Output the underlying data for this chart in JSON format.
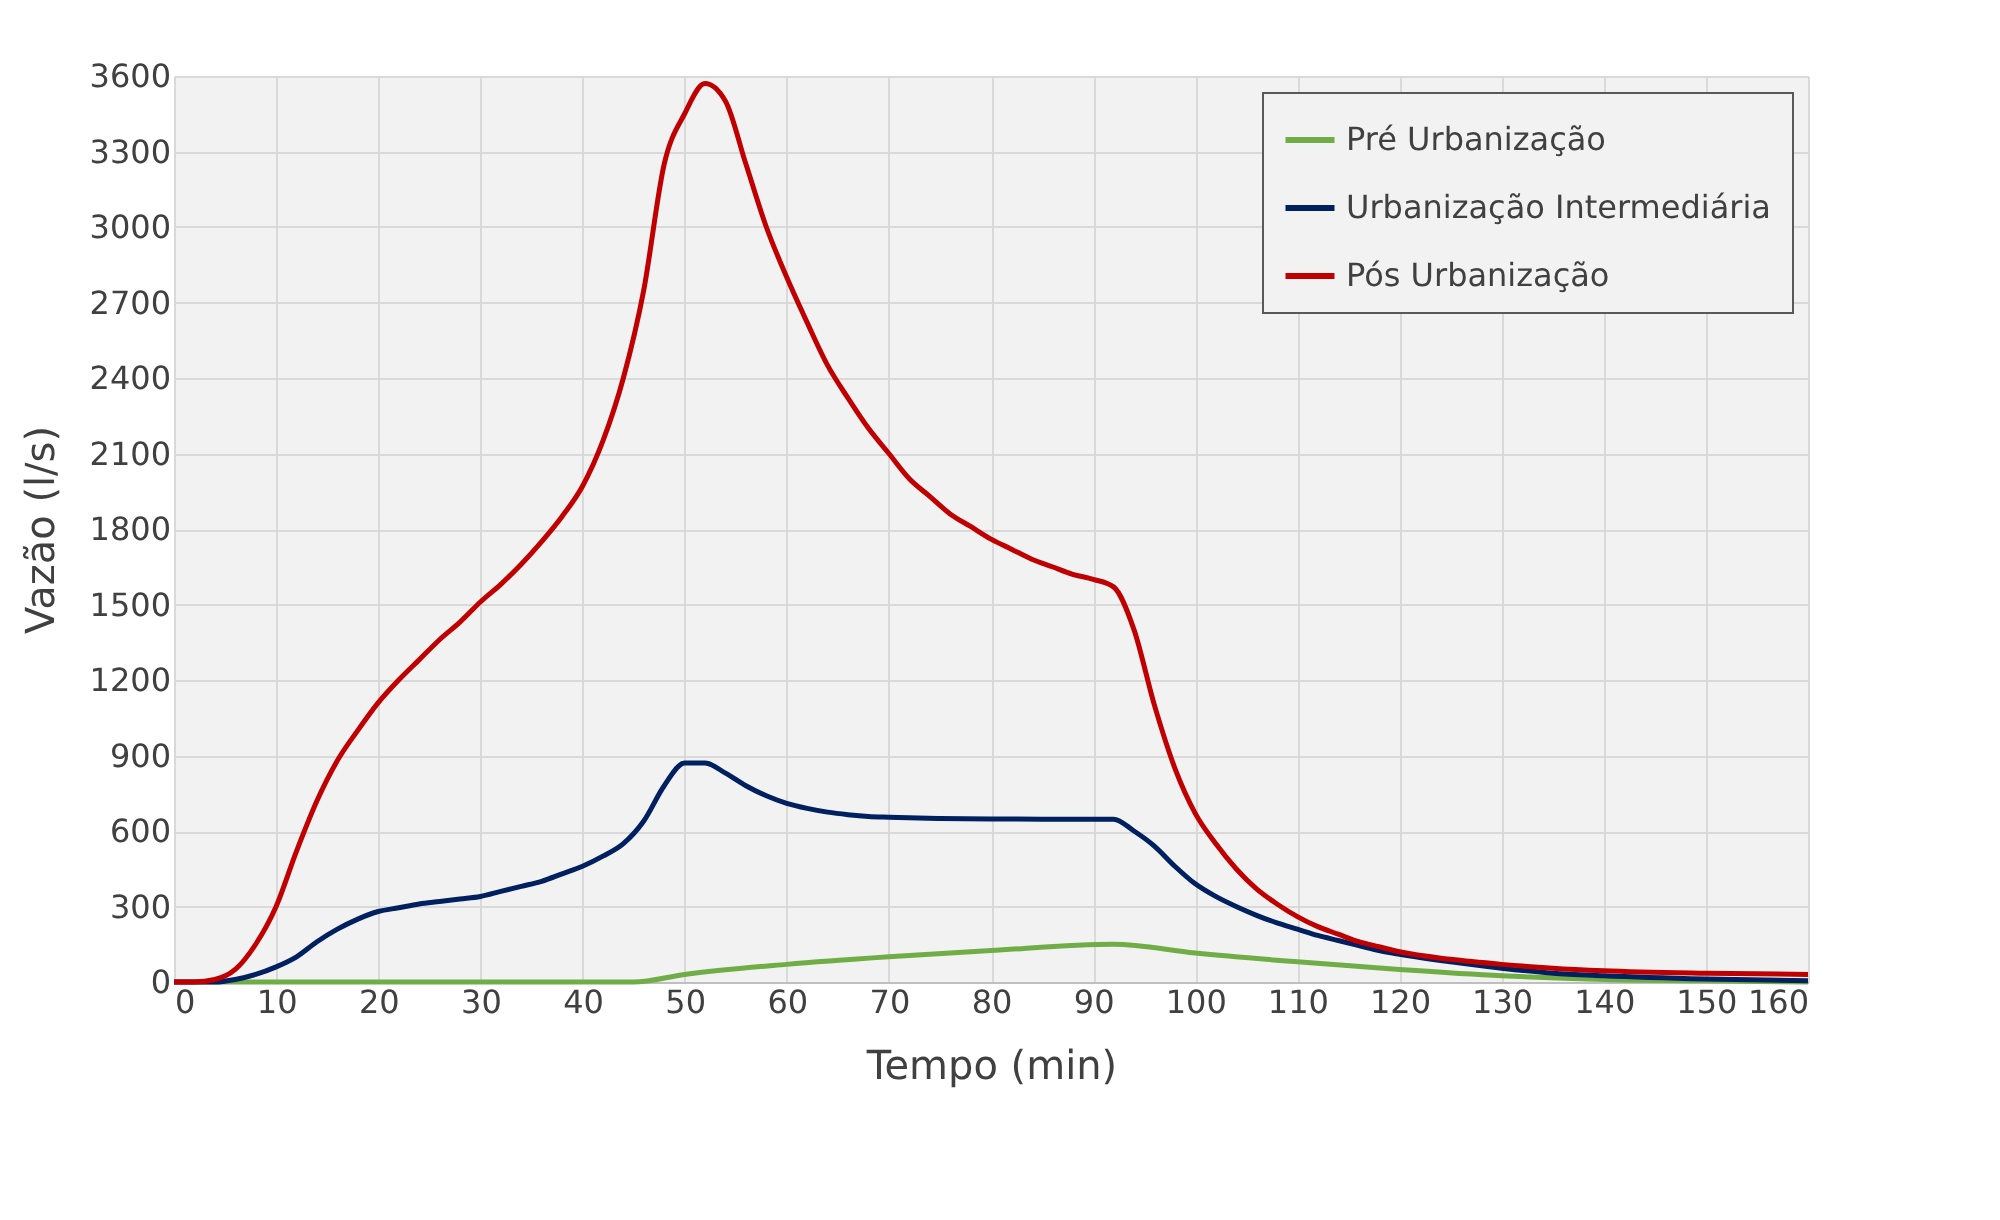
{
  "chart_data": {
    "type": "line",
    "xlabel": "Tempo (min)",
    "ylabel": "Vazão (l/s)",
    "xlim": [
      0,
      160
    ],
    "ylim": [
      0,
      3600
    ],
    "xticks": [
      0,
      10,
      20,
      30,
      40,
      50,
      60,
      70,
      80,
      90,
      100,
      110,
      120,
      130,
      140,
      150,
      160
    ],
    "yticks": [
      0,
      300,
      600,
      900,
      1200,
      1500,
      1800,
      2100,
      2400,
      2700,
      3000,
      3300,
      3600
    ],
    "grid": true,
    "legend": "top right",
    "marker": "none",
    "line_style": "solid",
    "series": [
      {
        "name": "Pré Urbanização",
        "color": "#70ad47",
        "x": [
          0,
          45,
          50,
          60,
          70,
          80,
          92,
          100,
          110,
          120,
          130,
          140,
          150,
          160
        ],
        "values": [
          0,
          0,
          30,
          70,
          100,
          125,
          150,
          115,
          80,
          50,
          25,
          10,
          5,
          0
        ]
      },
      {
        "name": "Urbanização Intermediária",
        "color": "#002060",
        "x": [
          0,
          4,
          6,
          8,
          10,
          12,
          14,
          16,
          18,
          20,
          22,
          24,
          26,
          28,
          30,
          32,
          34,
          36,
          38,
          40,
          42,
          44,
          46,
          48,
          50,
          52,
          54,
          56,
          58,
          60,
          62,
          64,
          66,
          68,
          70,
          75,
          80,
          85,
          92,
          94,
          96,
          98,
          100,
          102,
          104,
          106,
          108,
          110,
          112,
          114,
          116,
          118,
          120,
          125,
          130,
          135,
          140,
          150,
          160
        ],
        "values": [
          0,
          0,
          10,
          30,
          60,
          100,
          160,
          210,
          250,
          280,
          295,
          310,
          320,
          330,
          340,
          360,
          380,
          400,
          430,
          460,
          500,
          550,
          640,
          780,
          870,
          870,
          830,
          780,
          740,
          710,
          690,
          675,
          665,
          658,
          655,
          650,
          648,
          647,
          647,
          600,
          540,
          460,
          390,
          340,
          300,
          265,
          235,
          210,
          185,
          165,
          145,
          125,
          110,
          80,
          55,
          35,
          25,
          12,
          5
        ]
      },
      {
        "name": "Pós Urbanização",
        "color": "#c00000",
        "x": [
          0,
          2,
          4,
          6,
          8,
          10,
          12,
          14,
          16,
          18,
          20,
          22,
          24,
          26,
          28,
          30,
          32,
          34,
          36,
          38,
          40,
          42,
          44,
          46,
          48,
          50,
          52,
          54,
          56,
          58,
          60,
          62,
          64,
          66,
          68,
          70,
          72,
          74,
          76,
          78,
          80,
          82,
          84,
          86,
          88,
          90,
          92,
          94,
          96,
          98,
          100,
          102,
          104,
          106,
          108,
          110,
          112,
          114,
          116,
          118,
          120,
          125,
          130,
          135,
          140,
          150,
          160
        ],
        "values": [
          0,
          0,
          10,
          50,
          150,
          300,
          520,
          720,
          880,
          1000,
          1110,
          1200,
          1280,
          1360,
          1430,
          1510,
          1580,
          1660,
          1750,
          1850,
          1970,
          2150,
          2400,
          2750,
          3250,
          3450,
          3570,
          3500,
          3250,
          3000,
          2800,
          2620,
          2450,
          2320,
          2200,
          2100,
          2000,
          1930,
          1860,
          1810,
          1760,
          1720,
          1680,
          1650,
          1620,
          1600,
          1570,
          1400,
          1100,
          850,
          670,
          550,
          450,
          370,
          310,
          260,
          220,
          190,
          160,
          140,
          120,
          90,
          70,
          55,
          45,
          35,
          30
        ]
      }
    ]
  }
}
